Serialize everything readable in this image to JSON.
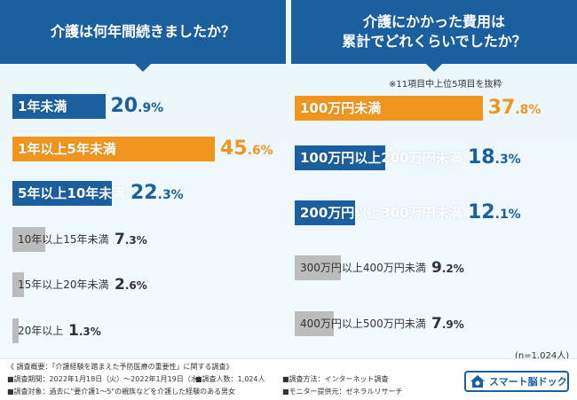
{
  "left_title": "介護は何年間続きましたか？",
  "right_title_line1": "介護にかかった費用は",
  "right_title_line2": "累計でどれくらいでしたか？",
  "note": "※11項目中上位5項目を抜粋",
  "n_label": "(n=1,024人)",
  "colors": {
    "blue": "#1b5f9e",
    "orange": "#f0961e",
    "gray": "#bcbcbc",
    "pct_blue": "#1b5f9e",
    "pct_orange": "#f0961e",
    "pct_gray": "#333333"
  },
  "chart_data": [
    {
      "type": "bar",
      "title": "介護は何年間続きましたか？",
      "categories": [
        "1年未満",
        "1年以上5年未満",
        "5年以上10年未満",
        "10年以上15年未満",
        "15年以上20年未満",
        "20年以上"
      ],
      "values": [
        20.9,
        45.6,
        22.3,
        7.3,
        2.6,
        1.3
      ],
      "unit": "%",
      "orientation": "horizontal",
      "bar_colors": [
        "blue",
        "orange",
        "blue",
        "gray",
        "gray",
        "gray"
      ]
    },
    {
      "type": "bar",
      "title": "介護にかかった費用は累計でどれくらいでしたか？",
      "categories": [
        "100万円未満",
        "100万円以上200万円未満",
        "200万円以上300万円未満",
        "300万円以上400万円未満",
        "400万円以上500万円未満"
      ],
      "values": [
        37.8,
        18.3,
        12.1,
        9.2,
        7.9
      ],
      "unit": "%",
      "orientation": "horizontal",
      "bar_colors": [
        "orange",
        "blue",
        "blue",
        "gray",
        "gray"
      ]
    }
  ],
  "footer": {
    "line1": "《 調査概要：「介護経験を踏まえた予防医療の重要性」に関する調査》",
    "line2a": "■調査期間：2022年1月18日（火）～2022年1月19日（水）",
    "line2b": "■調査人数：1,024人",
    "line2c": "■調査方法：インターネット調査",
    "line3a": "■調査対象：過去に\"要介護1～5\"の親族などを介護した経験のある男女",
    "line3b": "■モニター提供元：ゼネラルリサーチ"
  },
  "logo_text": "スマート脳ドック"
}
